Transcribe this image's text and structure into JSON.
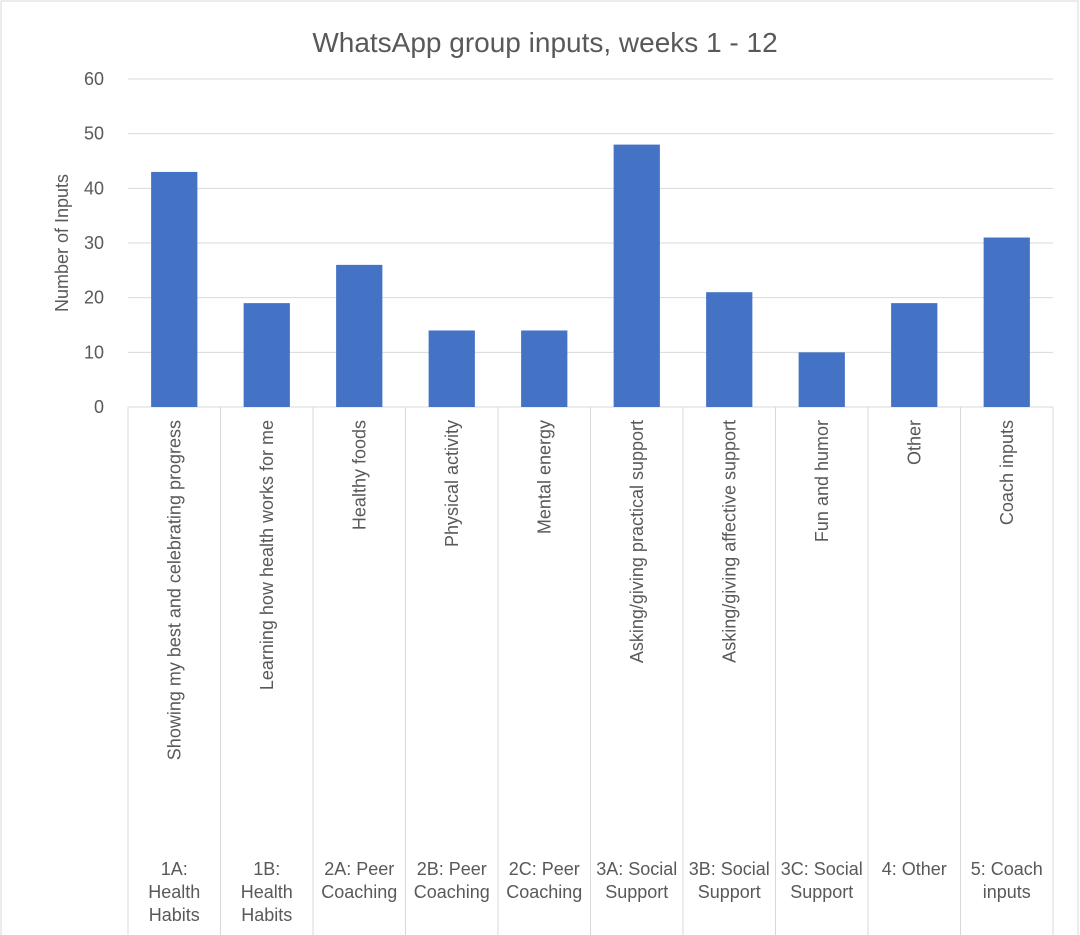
{
  "chart_data": {
    "type": "bar",
    "title": "WhatsApp group inputs, weeks 1 - 12",
    "y_label": "Number of Inputs",
    "categories": [
      "Showing my best and celebrating progress",
      "Learning how health works for me",
      "Healthy foods",
      "Physical activity",
      "Mental energy",
      "Asking/giving practical support",
      "Asking/giving affective support",
      "Fun and humor",
      "Other",
      "Coach inputs"
    ],
    "groups": [
      "1A: Health Habits",
      "1B: Health Habits",
      "2A: Peer Coaching",
      "2B: Peer Coaching",
      "2C: Peer Coaching",
      "3A: Social Support",
      "3B: Social Support",
      "3C: Social Support",
      "4: Other",
      "5: Coach inputs"
    ],
    "values": [
      43,
      19,
      26,
      14,
      14,
      48,
      21,
      10,
      19,
      31
    ],
    "color": "#4472c4",
    "ylim": [
      0,
      60
    ],
    "yticks": [
      0,
      10,
      20,
      30,
      40,
      50,
      60
    ],
    "grid": true
  }
}
